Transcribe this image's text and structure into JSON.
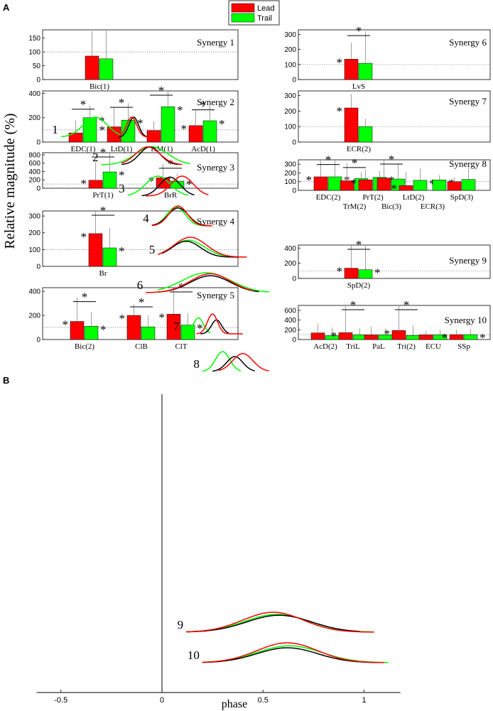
{
  "panel_a_label": "A",
  "panel_b_label": "B",
  "y_axis_label": "Relative magnitude (%)",
  "reference_level": 100,
  "colors": {
    "lead": "#ff0000",
    "trail": "#00ff00",
    "black": "#000000",
    "grid": "#888888"
  },
  "legend": [
    {
      "name": "Lead",
      "color": "#ff0000"
    },
    {
      "name": "Trail",
      "color": "#00ff00"
    }
  ],
  "chart_data": [
    {
      "type": "bar",
      "panel": "A",
      "title": "Synergy 1",
      "ylim": [
        0,
        180
      ],
      "yticks": [
        0,
        50,
        100,
        150
      ],
      "categories": [
        "Bic(1)"
      ],
      "series": [
        {
          "name": "Lead",
          "values": [
            85
          ],
          "err": [
            175
          ]
        },
        {
          "name": "Trail",
          "values": [
            75
          ],
          "err": [
            185
          ]
        }
      ],
      "sig": []
    },
    {
      "type": "bar",
      "panel": "A",
      "title": "Synergy 2",
      "ylim": [
        0,
        420
      ],
      "yticks": [
        0,
        200,
        400
      ],
      "categories": [
        "EDC(1)",
        "LtD(1)",
        "TrM(1)",
        "AcD(1)"
      ],
      "series": [
        {
          "name": "Lead",
          "values": [
            75,
            125,
            95,
            135
          ],
          "err": [
            180,
            280,
            170,
            260
          ]
        },
        {
          "name": "Trail",
          "values": [
            200,
            180,
            290,
            175
          ],
          "err": [
            300,
            320,
            440,
            300
          ]
        }
      ],
      "sig": [
        {
          "group": "EDC(1)",
          "lead_star": false,
          "trail_star": true,
          "bar": true
        },
        {
          "group": "LtD(1)",
          "lead_star": true,
          "trail_star": true,
          "bar": true
        },
        {
          "group": "TrM(1)",
          "lead_star": false,
          "trail_star": true,
          "bar": true
        },
        {
          "group": "AcD(1)",
          "lead_star": true,
          "trail_star": true,
          "bar": true
        }
      ]
    },
    {
      "type": "bar",
      "panel": "A",
      "title": "Synergy 3",
      "ylim": [
        0,
        850
      ],
      "yticks": [
        0,
        200,
        400,
        600,
        800
      ],
      "categories": [
        "PrT(1)",
        "BrR"
      ],
      "series": [
        {
          "name": "Lead",
          "values": [
            190,
            250
          ],
          "err": [
            620,
            580
          ]
        },
        {
          "name": "Trail",
          "values": [
            390,
            170
          ],
          "err": [
            850,
            350
          ]
        }
      ],
      "sig": [
        {
          "group": "PrT(1)",
          "lead_star": true,
          "trail_star": true,
          "bar": true
        },
        {
          "group": "BrR",
          "lead_star": true,
          "trail_star": true,
          "bar": true
        }
      ]
    },
    {
      "type": "bar",
      "panel": "A",
      "title": "Synergy 4",
      "ylim": [
        0,
        330
      ],
      "yticks": [
        0,
        100,
        200,
        300
      ],
      "categories": [
        "Br"
      ],
      "series": [
        {
          "name": "Lead",
          "values": [
            195
          ],
          "err": [
            330
          ]
        },
        {
          "name": "Trail",
          "values": [
            110
          ],
          "err": [
            230
          ]
        }
      ],
      "sig": [
        {
          "group": "Br",
          "lead_star": true,
          "trail_star": true,
          "bar": true
        }
      ]
    },
    {
      "type": "bar",
      "panel": "A",
      "title": "Synergy 5",
      "ylim": [
        0,
        430
      ],
      "yticks": [
        0,
        200,
        400
      ],
      "categories": [
        "Bic(2)",
        "ClB",
        "ClT"
      ],
      "series": [
        {
          "name": "Lead",
          "values": [
            150,
            200,
            210
          ],
          "err": [
            350,
            290,
            430
          ]
        },
        {
          "name": "Trail",
          "values": [
            110,
            105,
            120
          ],
          "err": [
            230,
            200,
            220
          ]
        }
      ],
      "sig": [
        {
          "group": "Bic(2)",
          "lead_star": true,
          "trail_star": true,
          "bar": true
        },
        {
          "group": "ClB",
          "lead_star": true,
          "trail_star": false,
          "bar": true
        },
        {
          "group": "ClT",
          "lead_star": true,
          "trail_star": true,
          "bar": true
        }
      ]
    },
    {
      "type": "bar",
      "panel": "A",
      "title": "Synergy 6",
      "ylim": [
        0,
        330
      ],
      "yticks": [
        0,
        100,
        200,
        300
      ],
      "categories": [
        "LvS"
      ],
      "series": [
        {
          "name": "Lead",
          "values": [
            135
          ],
          "err": [
            245
          ]
        },
        {
          "name": "Trail",
          "values": [
            108
          ],
          "err": [
            320
          ]
        }
      ],
      "sig": [
        {
          "group": "LvS",
          "lead_star": true,
          "trail_star": false,
          "bar": true
        }
      ]
    },
    {
      "type": "bar",
      "panel": "A",
      "title": "Synergy 7",
      "ylim": [
        0,
        330
      ],
      "yticks": [
        0,
        100,
        200,
        300
      ],
      "categories": [
        "ECR(2)"
      ],
      "series": [
        {
          "name": "Lead",
          "values": [
            220
          ],
          "err": [
            310
          ]
        },
        {
          "name": "Trail",
          "values": [
            100
          ],
          "err": [
            150
          ]
        }
      ],
      "sig": [
        {
          "group": "ECR(2)",
          "lead_star": true,
          "trail_star": false,
          "bar": false
        }
      ]
    },
    {
      "type": "bar",
      "panel": "A",
      "title": "Synergy 8",
      "ylim": [
        0,
        350
      ],
      "yticks": [
        0,
        100,
        200,
        300
      ],
      "categories": [
        "EDC(2)",
        "TrM(2)",
        "PrT(2)",
        "Bic(3)",
        "LtD(2)",
        "ECR(3)",
        "SpD(3)"
      ],
      "series": [
        {
          "name": "Lead",
          "values": [
            155,
            110,
            120,
            140,
            55,
            0,
            100
          ],
          "err": [
            340,
            310,
            240,
            350,
            210,
            0,
            150
          ]
        },
        {
          "name": "Trail",
          "values": [
            155,
            135,
            150,
            130,
            115,
            120,
            125
          ],
          "err": [
            345,
            210,
            220,
            300,
            250,
            175,
            265
          ]
        }
      ],
      "sig": [
        {
          "group": "EDC(2)",
          "lead_star": true,
          "trail_star": true,
          "bar": true
        },
        {
          "group": "TrM(2)",
          "lead_star": false,
          "trail_star": false,
          "bar": true
        },
        {
          "group": "PrT(2)",
          "lead_star": true,
          "trail_star": true,
          "bar": false
        },
        {
          "group": "Bic(3)",
          "lead_star": false,
          "trail_star": false,
          "bar": true
        },
        {
          "group": "LtD(2)",
          "lead_star": true,
          "trail_star": true,
          "bar": false
        },
        {
          "group": "ECR(3)",
          "lead_star": false,
          "trail_star": true,
          "bar": false
        },
        {
          "group": "SpD(3)",
          "lead_star": false,
          "trail_star": false,
          "bar": false
        }
      ]
    },
    {
      "type": "bar",
      "panel": "A",
      "title": "Synergy 9",
      "ylim": [
        0,
        440
      ],
      "yticks": [
        0,
        200,
        400
      ],
      "categories": [
        "SpD(2)"
      ],
      "series": [
        {
          "name": "Lead",
          "values": [
            135
          ],
          "err": [
            460
          ]
        },
        {
          "name": "Trail",
          "values": [
            115
          ],
          "err": [
            460
          ]
        }
      ],
      "sig": [
        {
          "group": "SpD(2)",
          "lead_star": true,
          "trail_star": true,
          "bar": true
        }
      ]
    },
    {
      "type": "bar",
      "panel": "A",
      "title": "Synergy 10",
      "ylim": [
        0,
        700
      ],
      "yticks": [
        0,
        200,
        400,
        600
      ],
      "categories": [
        "AcD(2)",
        "TriL",
        "PaL",
        "Tri(2)",
        "ECU",
        "SSp"
      ],
      "series": [
        {
          "name": "Lead",
          "values": [
            135,
            140,
            95,
            185,
            95,
            100
          ],
          "err": [
            330,
            720,
            270,
            720,
            175,
            200
          ]
        },
        {
          "name": "Trail",
          "values": [
            80,
            95,
            95,
            85,
            95,
            100
          ],
          "err": [
            250,
            230,
            220,
            290,
            200,
            215
          ]
        }
      ],
      "sig": [
        {
          "group": "AcD(2)",
          "lead_star": false,
          "trail_star": false,
          "bar": false
        },
        {
          "group": "TriL",
          "lead_star": true,
          "trail_star": true,
          "bar": true
        },
        {
          "group": "PaL",
          "lead_star": false,
          "trail_star": true,
          "bar": false
        },
        {
          "group": "Tri(2)",
          "lead_star": true,
          "trail_star": false,
          "bar": true
        },
        {
          "group": "ECU",
          "lead_star": false,
          "trail_star": false,
          "bar": false
        },
        {
          "group": "SSp",
          "lead_star": true,
          "trail_star": true,
          "bar": false
        }
      ]
    },
    {
      "type": "line",
      "panel": "B",
      "xlabel": "phase",
      "xlim": [
        -0.62,
        1.18
      ],
      "xticks": [
        -0.5,
        0,
        0.5,
        1
      ],
      "xtick_labels": [
        "-0.5",
        "0",
        "0.5",
        "1"
      ],
      "row_labels": [
        "1",
        "2",
        "3",
        "4",
        "5",
        "6",
        "7",
        "8",
        "9",
        "10"
      ],
      "rows": [
        {
          "label": "1",
          "lead": {
            "center": -0.15,
            "width": 0.025,
            "range": [
              -0.23,
              -0.07
            ],
            "amp": 1.0
          },
          "trail": {
            "center": -0.33,
            "width": 0.06,
            "range": [
              -0.5,
              -0.17
            ],
            "amp": 1.0
          },
          "black": {
            "center": -0.14,
            "width": 0.024,
            "range": [
              -0.22,
              -0.07
            ],
            "amp": 1.0
          }
        },
        {
          "label": "2",
          "lead": {
            "center": -0.07,
            "width": 0.06,
            "range": [
              -0.2,
              0.1
            ],
            "amp": 0.9
          },
          "trail": {
            "center": -0.05,
            "width": 0.08,
            "range": [
              -0.3,
              0.14
            ],
            "amp": 0.9
          },
          "black": {
            "center": -0.06,
            "width": 0.05,
            "range": [
              -0.2,
              0.08
            ],
            "amp": 0.9
          }
        },
        {
          "label": "3",
          "lead": {
            "center": 0.1,
            "width": 0.055,
            "range": [
              -0.08,
              0.23
            ],
            "amp": 1.0
          },
          "trail": {
            "center": -0.02,
            "width": 0.06,
            "range": [
              -0.17,
              0.13
            ],
            "amp": 1.0
          },
          "black": {
            "center": 0.04,
            "width": 0.05,
            "range": [
              -0.1,
              0.16
            ],
            "amp": 0.95
          }
        },
        {
          "label": "4",
          "lead": {
            "center": 0.08,
            "width": 0.045,
            "range": [
              -0.05,
              0.25
            ],
            "amp": 1.0
          },
          "trail": {
            "center": 0.07,
            "width": 0.045,
            "range": [
              -0.05,
              0.22
            ],
            "amp": 0.95
          },
          "black": {
            "center": 0.08,
            "width": 0.05,
            "range": [
              -0.05,
              0.23
            ],
            "amp": 0.9
          }
        },
        {
          "label": "5",
          "lead": {
            "center": 0.14,
            "width": 0.08,
            "range": [
              -0.02,
              0.42
            ],
            "amp": 1.0
          },
          "trail": {
            "center": 0.13,
            "width": 0.08,
            "range": [
              0,
              0.4
            ],
            "amp": 0.85
          },
          "black": {
            "center": 0.12,
            "width": 0.07,
            "range": [
              0,
              0.38
            ],
            "amp": 0.8
          }
        },
        {
          "label": "6",
          "lead": {
            "center": 0.24,
            "width": 0.1,
            "range": [
              -0.08,
              0.45
            ],
            "amp": 0.95
          },
          "trail": {
            "center": 0.22,
            "width": 0.12,
            "range": [
              -0.02,
              0.53
            ],
            "amp": 1.0
          },
          "black": {
            "center": 0.24,
            "width": 0.1,
            "range": [
              -0.02,
              0.48
            ],
            "amp": 0.85
          }
        },
        {
          "label": "7",
          "lead": {
            "center": 0.25,
            "width": 0.025,
            "range": [
              0.17,
              0.4
            ],
            "amp": 1.0
          },
          "trail": {
            "center": 0.18,
            "width": 0.025,
            "range": [
              0.1,
              0.24
            ],
            "amp": 0.8
          },
          "black": {
            "center": 0.27,
            "width": 0.025,
            "range": [
              0.19,
              0.33
            ],
            "amp": 0.7
          }
        },
        {
          "label": "8",
          "lead": {
            "center": 0.4,
            "width": 0.05,
            "range": [
              0.28,
              0.53
            ],
            "amp": 0.9
          },
          "trail": {
            "center": 0.3,
            "width": 0.035,
            "range": [
              0.2,
              0.39
            ],
            "amp": 1.0
          },
          "black": {
            "center": 0.36,
            "width": 0.04,
            "range": [
              0.25,
              0.46
            ],
            "amp": 0.75
          }
        },
        {
          "label": "9",
          "lead": {
            "center": 0.55,
            "width": 0.15,
            "range": [
              0.12,
              1.05
            ],
            "amp": 1.0
          },
          "trail": {
            "center": 0.57,
            "width": 0.16,
            "range": [
              0.12,
              1.05
            ],
            "amp": 0.9
          },
          "black": {
            "center": 0.58,
            "width": 0.16,
            "range": [
              0.12,
              0.98
            ],
            "amp": 0.85
          }
        },
        {
          "label": "10",
          "lead": {
            "center": 0.62,
            "width": 0.15,
            "range": [
              0.2,
              1.1
            ],
            "amp": 1.0
          },
          "trail": {
            "center": 0.63,
            "width": 0.16,
            "range": [
              0.2,
              1.12
            ],
            "amp": 0.85
          },
          "black": {
            "center": 0.62,
            "width": 0.15,
            "range": [
              0.2,
              1.08
            ],
            "amp": 0.75
          }
        }
      ]
    }
  ]
}
